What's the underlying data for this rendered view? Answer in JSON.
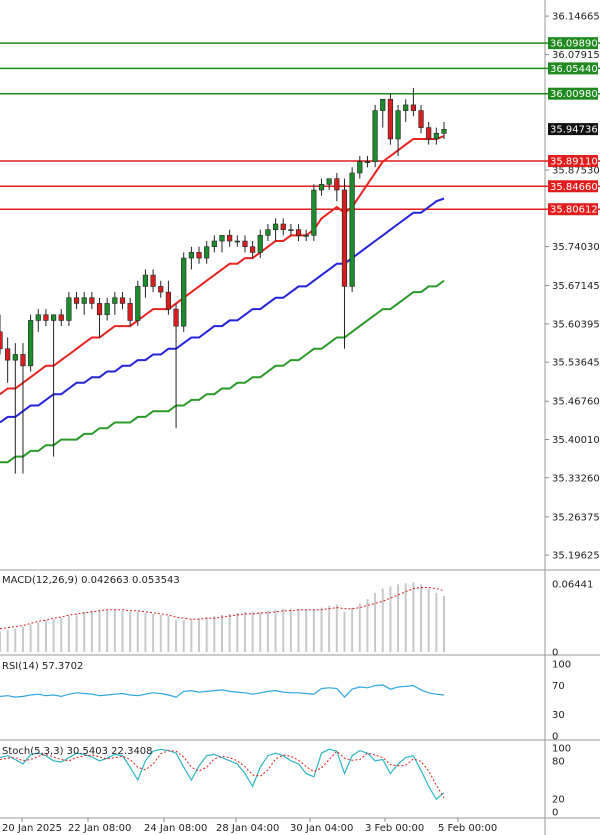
{
  "chart_data": {
    "type": "candlestick",
    "instrument_note": "",
    "x_ticks": [
      "20 Jan 2025",
      "22 Jan 08:00",
      "24 Jan 08:00",
      "28 Jan 04:00",
      "30 Jan 04:00",
      "3 Feb 00:00",
      "5 Feb 00:00"
    ],
    "y_ticks": [
      "36.14665",
      "36.07915",
      "35.87530",
      "35.74030",
      "35.67145",
      "35.60395",
      "35.53645",
      "35.46760",
      "35.40010",
      "35.33260",
      "35.26375",
      "35.19625"
    ],
    "ylim": [
      35.17,
      36.175
    ],
    "horizontal_levels": {
      "resistance": [
        {
          "label": "36.09890",
          "value": 36.0989
        },
        {
          "label": "36.05440",
          "value": 36.0544
        },
        {
          "label": "36.00980",
          "value": 36.0098
        }
      ],
      "support": [
        {
          "label": "35.89110",
          "value": 35.8911
        },
        {
          "label": "35.84660",
          "value": 35.8466
        },
        {
          "label": "35.80612",
          "value": 35.80612
        }
      ],
      "current": {
        "label": "35.94736",
        "value": 35.94736
      }
    },
    "candles": [
      {
        "o": 35.59,
        "h": 35.62,
        "l": 35.55,
        "c": 35.56
      },
      {
        "o": 35.56,
        "h": 35.58,
        "l": 35.5,
        "c": 35.54
      },
      {
        "o": 35.54,
        "h": 35.57,
        "l": 35.34,
        "c": 35.55
      },
      {
        "o": 35.55,
        "h": 35.57,
        "l": 35.34,
        "c": 35.53
      },
      {
        "o": 35.53,
        "h": 35.62,
        "l": 35.52,
        "c": 35.61
      },
      {
        "o": 35.61,
        "h": 35.63,
        "l": 35.59,
        "c": 35.62
      },
      {
        "o": 35.62,
        "h": 35.63,
        "l": 35.6,
        "c": 35.61
      },
      {
        "o": 35.61,
        "h": 35.62,
        "l": 35.37,
        "c": 35.62
      },
      {
        "o": 35.62,
        "h": 35.63,
        "l": 35.6,
        "c": 35.61
      },
      {
        "o": 35.61,
        "h": 35.66,
        "l": 35.6,
        "c": 35.65
      },
      {
        "o": 35.65,
        "h": 35.66,
        "l": 35.63,
        "c": 35.64
      },
      {
        "o": 35.64,
        "h": 35.66,
        "l": 35.62,
        "c": 35.65
      },
      {
        "o": 35.65,
        "h": 35.66,
        "l": 35.63,
        "c": 35.64
      },
      {
        "o": 35.64,
        "h": 35.65,
        "l": 35.58,
        "c": 35.62
      },
      {
        "o": 35.62,
        "h": 35.65,
        "l": 35.61,
        "c": 35.64
      },
      {
        "o": 35.64,
        "h": 35.66,
        "l": 35.62,
        "c": 35.65
      },
      {
        "o": 35.65,
        "h": 35.66,
        "l": 35.63,
        "c": 35.64
      },
      {
        "o": 35.64,
        "h": 35.65,
        "l": 35.6,
        "c": 35.61
      },
      {
        "o": 35.61,
        "h": 35.68,
        "l": 35.6,
        "c": 35.67
      },
      {
        "o": 35.67,
        "h": 35.7,
        "l": 35.65,
        "c": 35.69
      },
      {
        "o": 35.69,
        "h": 35.7,
        "l": 35.66,
        "c": 35.67
      },
      {
        "o": 35.67,
        "h": 35.68,
        "l": 35.65,
        "c": 35.66
      },
      {
        "o": 35.66,
        "h": 35.68,
        "l": 35.62,
        "c": 35.63
      },
      {
        "o": 35.63,
        "h": 35.64,
        "l": 35.42,
        "c": 35.6
      },
      {
        "o": 35.6,
        "h": 35.73,
        "l": 35.59,
        "c": 35.72
      },
      {
        "o": 35.72,
        "h": 35.74,
        "l": 35.7,
        "c": 35.73
      },
      {
        "o": 35.73,
        "h": 35.74,
        "l": 35.71,
        "c": 35.72
      },
      {
        "o": 35.72,
        "h": 35.75,
        "l": 35.71,
        "c": 35.74
      },
      {
        "o": 35.74,
        "h": 35.76,
        "l": 35.73,
        "c": 35.75
      },
      {
        "o": 35.75,
        "h": 35.76,
        "l": 35.73,
        "c": 35.76
      },
      {
        "o": 35.76,
        "h": 35.77,
        "l": 35.74,
        "c": 35.75
      },
      {
        "o": 35.75,
        "h": 35.76,
        "l": 35.74,
        "c": 35.75
      },
      {
        "o": 35.75,
        "h": 35.76,
        "l": 35.73,
        "c": 35.74
      },
      {
        "o": 35.74,
        "h": 35.75,
        "l": 35.72,
        "c": 35.73
      },
      {
        "o": 35.73,
        "h": 35.77,
        "l": 35.72,
        "c": 35.76
      },
      {
        "o": 35.76,
        "h": 35.78,
        "l": 35.75,
        "c": 35.77
      },
      {
        "o": 35.77,
        "h": 35.79,
        "l": 35.75,
        "c": 35.78
      },
      {
        "o": 35.78,
        "h": 35.79,
        "l": 35.76,
        "c": 35.77
      },
      {
        "o": 35.77,
        "h": 35.78,
        "l": 35.76,
        "c": 35.77
      },
      {
        "o": 35.77,
        "h": 35.78,
        "l": 35.75,
        "c": 35.76
      },
      {
        "o": 35.76,
        "h": 35.77,
        "l": 35.75,
        "c": 35.76
      },
      {
        "o": 35.76,
        "h": 35.85,
        "l": 35.75,
        "c": 35.84
      },
      {
        "o": 35.84,
        "h": 35.86,
        "l": 35.83,
        "c": 35.85
      },
      {
        "o": 35.85,
        "h": 35.86,
        "l": 35.84,
        "c": 35.86
      },
      {
        "o": 35.86,
        "h": 35.87,
        "l": 35.82,
        "c": 35.84
      },
      {
        "o": 35.84,
        "h": 35.86,
        "l": 35.56,
        "c": 35.67
      },
      {
        "o": 35.67,
        "h": 35.88,
        "l": 35.66,
        "c": 35.87
      },
      {
        "o": 35.87,
        "h": 35.9,
        "l": 35.86,
        "c": 35.89
      },
      {
        "o": 35.89,
        "h": 35.9,
        "l": 35.88,
        "c": 35.89
      },
      {
        "o": 35.89,
        "h": 35.99,
        "l": 35.88,
        "c": 35.98
      },
      {
        "o": 35.98,
        "h": 36.0,
        "l": 35.95,
        "c": 36.0
      },
      {
        "o": 36.0,
        "h": 36.01,
        "l": 35.92,
        "c": 35.93
      },
      {
        "o": 35.93,
        "h": 35.99,
        "l": 35.9,
        "c": 35.98
      },
      {
        "o": 35.98,
        "h": 36.0,
        "l": 35.96,
        "c": 35.99
      },
      {
        "o": 35.99,
        "h": 36.02,
        "l": 35.97,
        "c": 35.98
      },
      {
        "o": 35.98,
        "h": 35.99,
        "l": 35.94,
        "c": 35.95
      },
      {
        "o": 35.95,
        "h": 35.96,
        "l": 35.92,
        "c": 35.93
      },
      {
        "o": 35.93,
        "h": 35.95,
        "l": 35.92,
        "c": 35.94
      },
      {
        "o": 35.94,
        "h": 35.96,
        "l": 35.93,
        "c": 35.947
      }
    ],
    "moving_averages": [
      {
        "color": "#e8231f",
        "values": [
          35.48,
          35.49,
          35.49,
          35.5,
          35.51,
          35.52,
          35.53,
          35.53,
          35.54,
          35.55,
          35.56,
          35.57,
          35.58,
          35.58,
          35.59,
          35.6,
          35.6,
          35.6,
          35.61,
          35.62,
          35.63,
          35.63,
          35.63,
          35.64,
          35.65,
          35.66,
          35.67,
          35.68,
          35.69,
          35.7,
          35.71,
          35.71,
          35.72,
          35.72,
          35.73,
          35.74,
          35.75,
          35.75,
          35.76,
          35.76,
          35.76,
          35.77,
          35.79,
          35.8,
          35.81,
          35.8,
          35.81,
          35.83,
          35.85,
          35.87,
          35.89,
          35.9,
          35.91,
          35.92,
          35.93,
          35.93,
          35.93,
          35.93,
          35.935
        ]
      },
      {
        "color": "#2323d8",
        "values": [
          35.43,
          35.44,
          35.44,
          35.45,
          35.46,
          35.46,
          35.47,
          35.48,
          35.48,
          35.49,
          35.5,
          35.5,
          35.51,
          35.51,
          35.52,
          35.52,
          35.53,
          35.53,
          35.54,
          35.54,
          35.55,
          35.55,
          35.56,
          35.56,
          35.57,
          35.58,
          35.58,
          35.59,
          35.6,
          35.6,
          35.61,
          35.61,
          35.62,
          35.63,
          35.63,
          35.64,
          35.65,
          35.65,
          35.66,
          35.67,
          35.67,
          35.68,
          35.69,
          35.7,
          35.71,
          35.71,
          35.72,
          35.73,
          35.74,
          35.75,
          35.76,
          35.77,
          35.78,
          35.79,
          35.8,
          35.8,
          35.81,
          35.82,
          35.825
        ]
      },
      {
        "color": "#2a9a2a",
        "values": [
          35.36,
          35.36,
          35.37,
          35.37,
          35.38,
          35.38,
          35.39,
          35.39,
          35.4,
          35.4,
          35.4,
          35.41,
          35.41,
          35.42,
          35.42,
          35.43,
          35.43,
          35.43,
          35.44,
          35.44,
          35.45,
          35.45,
          35.45,
          35.46,
          35.46,
          35.47,
          35.47,
          35.48,
          35.48,
          35.49,
          35.49,
          35.5,
          35.5,
          35.51,
          35.51,
          35.52,
          35.53,
          35.53,
          35.54,
          35.54,
          35.55,
          35.56,
          35.56,
          35.57,
          35.58,
          35.58,
          35.59,
          35.6,
          35.61,
          35.62,
          35.63,
          35.63,
          35.64,
          35.65,
          35.66,
          35.66,
          35.67,
          35.67,
          35.68
        ]
      }
    ],
    "macd": {
      "label": "MACD(12,26,9) 0.042663 0.053543",
      "y_ticks": [
        "0.06441",
        "0"
      ],
      "ylim": [
        0,
        0.07
      ],
      "histogram": [
        0.02,
        0.021,
        0.022,
        0.024,
        0.026,
        0.028,
        0.03,
        0.031,
        0.032,
        0.034,
        0.036,
        0.038,
        0.039,
        0.04,
        0.04,
        0.04,
        0.039,
        0.038,
        0.038,
        0.037,
        0.036,
        0.035,
        0.034,
        0.03,
        0.03,
        0.031,
        0.032,
        0.033,
        0.034,
        0.035,
        0.036,
        0.037,
        0.038,
        0.038,
        0.038,
        0.039,
        0.04,
        0.041,
        0.041,
        0.041,
        0.04,
        0.04,
        0.042,
        0.044,
        0.045,
        0.038,
        0.042,
        0.046,
        0.05,
        0.056,
        0.06,
        0.062,
        0.064,
        0.065,
        0.066,
        0.064,
        0.06,
        0.056,
        0.053
      ],
      "signal": [
        0.022,
        0.023,
        0.024,
        0.025,
        0.027,
        0.029,
        0.03,
        0.032,
        0.033,
        0.035,
        0.036,
        0.037,
        0.038,
        0.039,
        0.04,
        0.04,
        0.04,
        0.039,
        0.039,
        0.038,
        0.037,
        0.036,
        0.035,
        0.033,
        0.032,
        0.031,
        0.031,
        0.032,
        0.032,
        0.033,
        0.034,
        0.035,
        0.036,
        0.036,
        0.037,
        0.037,
        0.038,
        0.039,
        0.039,
        0.04,
        0.04,
        0.04,
        0.04,
        0.041,
        0.042,
        0.041,
        0.041,
        0.042,
        0.044,
        0.046,
        0.048,
        0.051,
        0.054,
        0.057,
        0.06,
        0.061,
        0.061,
        0.06,
        0.058
      ]
    },
    "rsi": {
      "label": "RSI(14) 57.3702",
      "y_ticks": [
        "100",
        "70",
        "30",
        "0"
      ],
      "ylim": [
        0,
        100
      ],
      "values": [
        55,
        56,
        54,
        55,
        57,
        58,
        56,
        57,
        55,
        58,
        60,
        59,
        58,
        56,
        57,
        58,
        59,
        57,
        56,
        58,
        60,
        59,
        57,
        54,
        62,
        63,
        61,
        62,
        63,
        64,
        62,
        61,
        60,
        58,
        60,
        62,
        63,
        61,
        60,
        60,
        59,
        58,
        66,
        67,
        66,
        54,
        65,
        68,
        67,
        70,
        71,
        65,
        68,
        69,
        70,
        64,
        60,
        58,
        57
      ]
    },
    "stoch": {
      "label": "Stoch(5,3,3) 30.5403 22.3408",
      "y_ticks": [
        "100",
        "80",
        "20",
        "0"
      ],
      "ylim": [
        0,
        100
      ],
      "k": [
        85,
        88,
        82,
        75,
        90,
        92,
        88,
        80,
        78,
        85,
        92,
        90,
        86,
        80,
        84,
        90,
        88,
        70,
        50,
        80,
        95,
        98,
        96,
        92,
        70,
        50,
        72,
        88,
        90,
        85,
        80,
        75,
        60,
        40,
        70,
        88,
        92,
        88,
        80,
        75,
        60,
        55,
        92,
        98,
        95,
        60,
        88,
        96,
        92,
        80,
        82,
        60,
        75,
        85,
        88,
        65,
        40,
        20,
        30
      ],
      "d": [
        82,
        84,
        85,
        80,
        82,
        87,
        90,
        86,
        82,
        80,
        85,
        88,
        89,
        86,
        83,
        85,
        87,
        82,
        70,
        66,
        75,
        91,
        96,
        95,
        86,
        70,
        64,
        70,
        83,
        87,
        85,
        80,
        71,
        58,
        56,
        66,
        83,
        89,
        87,
        81,
        71,
        63,
        69,
        82,
        95,
        84,
        81,
        82,
        92,
        89,
        85,
        74,
        72,
        73,
        83,
        79,
        64,
        42,
        22
      ]
    }
  }
}
